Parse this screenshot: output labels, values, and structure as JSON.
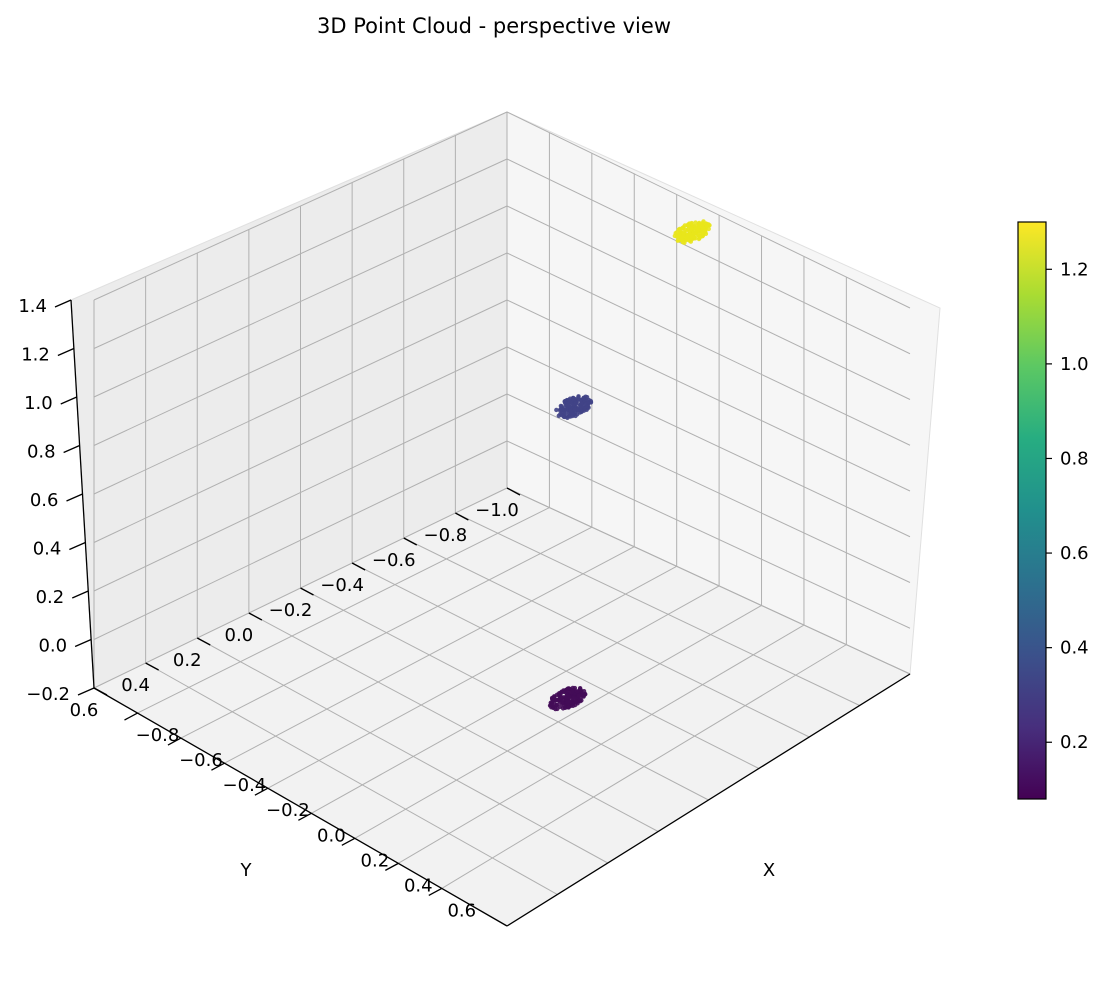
{
  "chart_data": {
    "type": "scatter",
    "title": "3D Point Cloud - perspective view",
    "xlabel": "X",
    "ylabel": "Y",
    "zlabel": "",
    "xlim": [
      -1.0,
      0.9
    ],
    "ylim": [
      -1.0,
      0.6
    ],
    "zlim": [
      -0.2,
      1.4
    ],
    "x_ticks": [
      "−0.8",
      "−0.6",
      "−0.4",
      "−0.2",
      "0.0",
      "0.2",
      "0.4",
      "0.6"
    ],
    "y_ticks": [
      "−1.0",
      "−0.8",
      "−0.6",
      "−0.4",
      "−0.2",
      "0.0",
      "0.2",
      "0.4",
      "0.6"
    ],
    "z_ticks": [
      "−0.2",
      "0.0",
      "0.2",
      "0.4",
      "0.6",
      "0.8",
      "1.0",
      "1.2",
      "1.4"
    ],
    "grid": true,
    "colormap": "viridis",
    "colorbar": {
      "range": [
        0.08,
        1.3
      ],
      "ticks": [
        "0.2",
        "0.4",
        "0.6",
        "0.8",
        "1.0",
        "1.2"
      ]
    },
    "series": [
      {
        "x": -0.15,
        "y": -1.02,
        "z": 1.25,
        "color_value": 1.25,
        "color": "#e9e61b"
      },
      {
        "x": -0.35,
        "y": -0.72,
        "z": 0.58,
        "color_value": 0.33,
        "color": "#414487"
      },
      {
        "x": 0.42,
        "y": -0.05,
        "z": 0.1,
        "color_value": 0.1,
        "color": "#440c58"
      }
    ]
  }
}
